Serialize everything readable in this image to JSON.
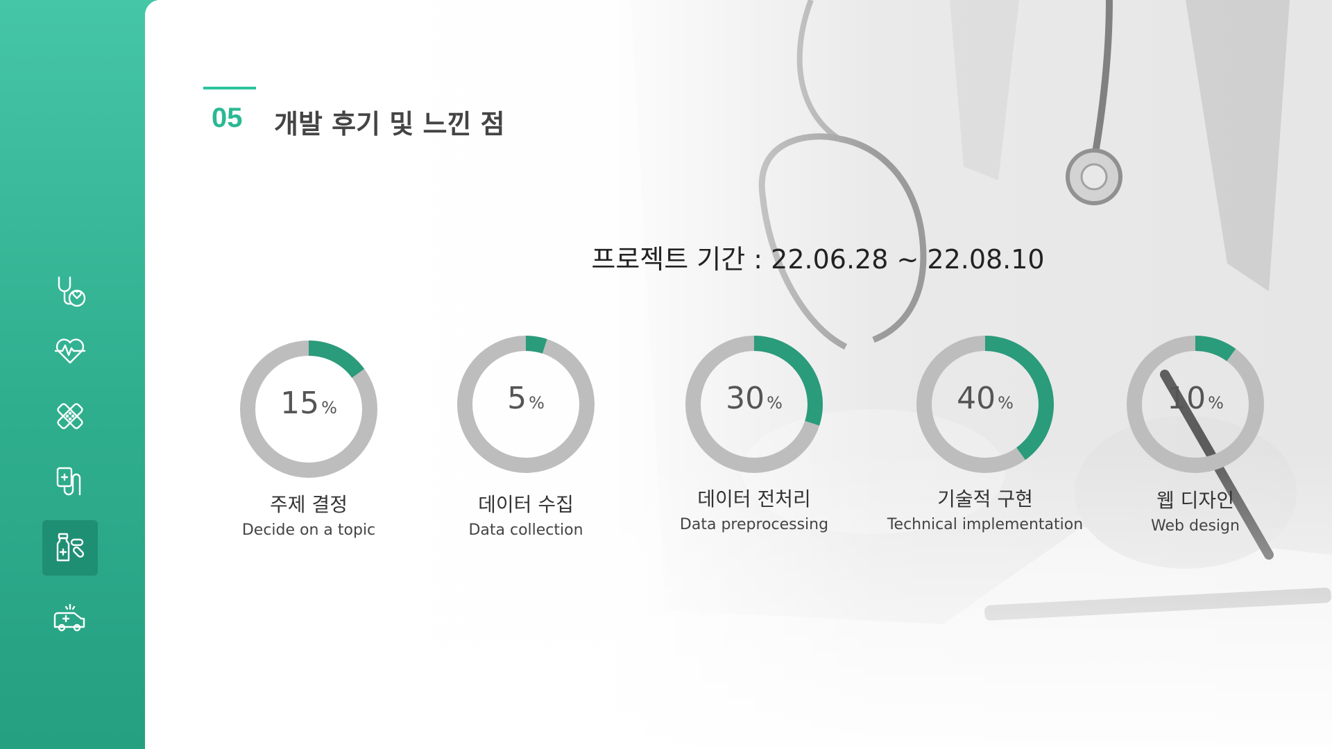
{
  "sidebar": {
    "icons": [
      {
        "name": "stethoscope-heart-icon",
        "active": false
      },
      {
        "name": "heartbeat-icon",
        "active": false
      },
      {
        "name": "bandage-icon",
        "active": false
      },
      {
        "name": "iv-drip-icon",
        "active": false
      },
      {
        "name": "medicine-bottle-pill-icon",
        "active": true
      },
      {
        "name": "ambulance-icon",
        "active": false
      }
    ]
  },
  "header": {
    "number": "05",
    "title": "개발 후기 및 느낀 점"
  },
  "period": "프로젝트 기간 : 22.06.28 ~ 22.08.10",
  "colors": {
    "accent": "#2bb894",
    "ring_fill": "#2a9b7b",
    "ring_track": "#bdbdbd",
    "sidebar": "#3bbb9b"
  },
  "chart_data": {
    "type": "donut",
    "items": [
      {
        "value": 15,
        "unit": "%",
        "label_ko": "주제 결정",
        "label_en": "Decide on a topic"
      },
      {
        "value": 5,
        "unit": "%",
        "label_ko": "데이터 수집",
        "label_en": "Data collection"
      },
      {
        "value": 30,
        "unit": "%",
        "label_ko": "데이터 전처리",
        "label_en": "Data preprocessing"
      },
      {
        "value": 40,
        "unit": "%",
        "label_ko": "기술적 구현",
        "label_en": "Technical implementation"
      },
      {
        "value": 10,
        "unit": "%",
        "label_ko": "웹 디자인",
        "label_en": "Web design"
      }
    ]
  }
}
